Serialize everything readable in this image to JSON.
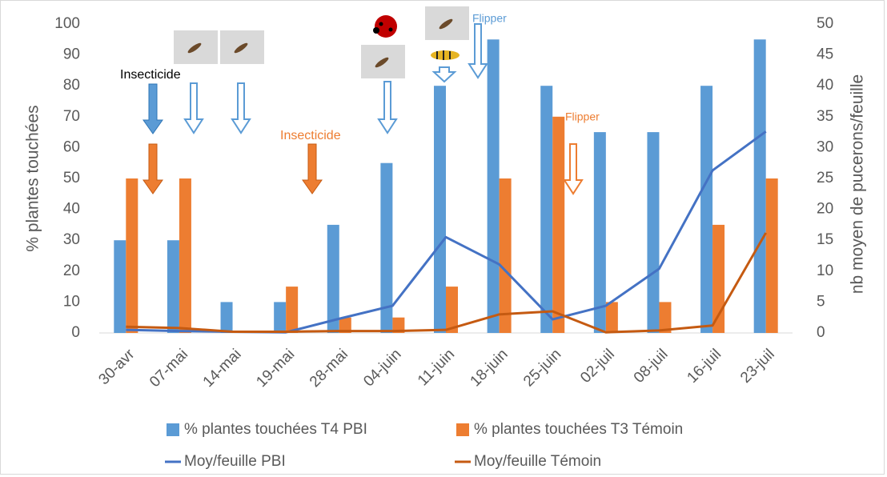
{
  "chart_data": {
    "type": "bar",
    "categories": [
      "30-avr",
      "07-mai",
      "14-mai",
      "19-mai",
      "28-mai",
      "04-juin",
      "11-juin",
      "18-juin",
      "25-juin",
      "02-juil",
      "08-juil",
      "16-juil",
      "23-juil"
    ],
    "series": [
      {
        "name": "% plantes touchées T4 PBI",
        "type": "bar",
        "color": "#5b9bd5",
        "values": [
          30,
          30,
          10,
          10,
          35,
          55,
          80,
          95,
          80,
          65,
          65,
          80,
          95
        ]
      },
      {
        "name": "% plantes touchées T3 Témoin",
        "type": "bar",
        "color": "#ed7d31",
        "values": [
          50,
          50,
          0,
          15,
          5,
          5,
          15,
          50,
          70,
          10,
          10,
          35,
          50
        ]
      },
      {
        "name": "Moy/feuille PBI",
        "type": "line",
        "axis": "y2",
        "color": "#4472c4",
        "values": [
          0.5,
          0.3,
          0.2,
          0.1,
          2.3,
          4.4,
          15.5,
          11.1,
          2.2,
          4.4,
          10.4,
          26.3,
          32.6
        ]
      },
      {
        "name": "Moy/feuille Témoin",
        "type": "line",
        "axis": "y2",
        "color": "#c55a11",
        "values": [
          1,
          0.8,
          0.2,
          0.2,
          0.3,
          0.3,
          0.5,
          3,
          3.5,
          0.1,
          0.4,
          1.2,
          16.2
        ]
      }
    ],
    "y_label": "% plantes touchées",
    "y2_label": "nb moyen de pucerons/feuille",
    "ylim": [
      0,
      100
    ],
    "yticks": [
      0,
      10,
      20,
      30,
      40,
      50,
      60,
      70,
      80,
      90,
      100
    ],
    "y2lim": [
      0,
      50
    ],
    "y2ticks": [
      0,
      5,
      10,
      15,
      20,
      25,
      30,
      35,
      40,
      45,
      50
    ],
    "grid": false,
    "legend": "bottom",
    "annotations": [
      "Insecticide",
      "Insecticide",
      "Flipper",
      "Flipper"
    ]
  }
}
